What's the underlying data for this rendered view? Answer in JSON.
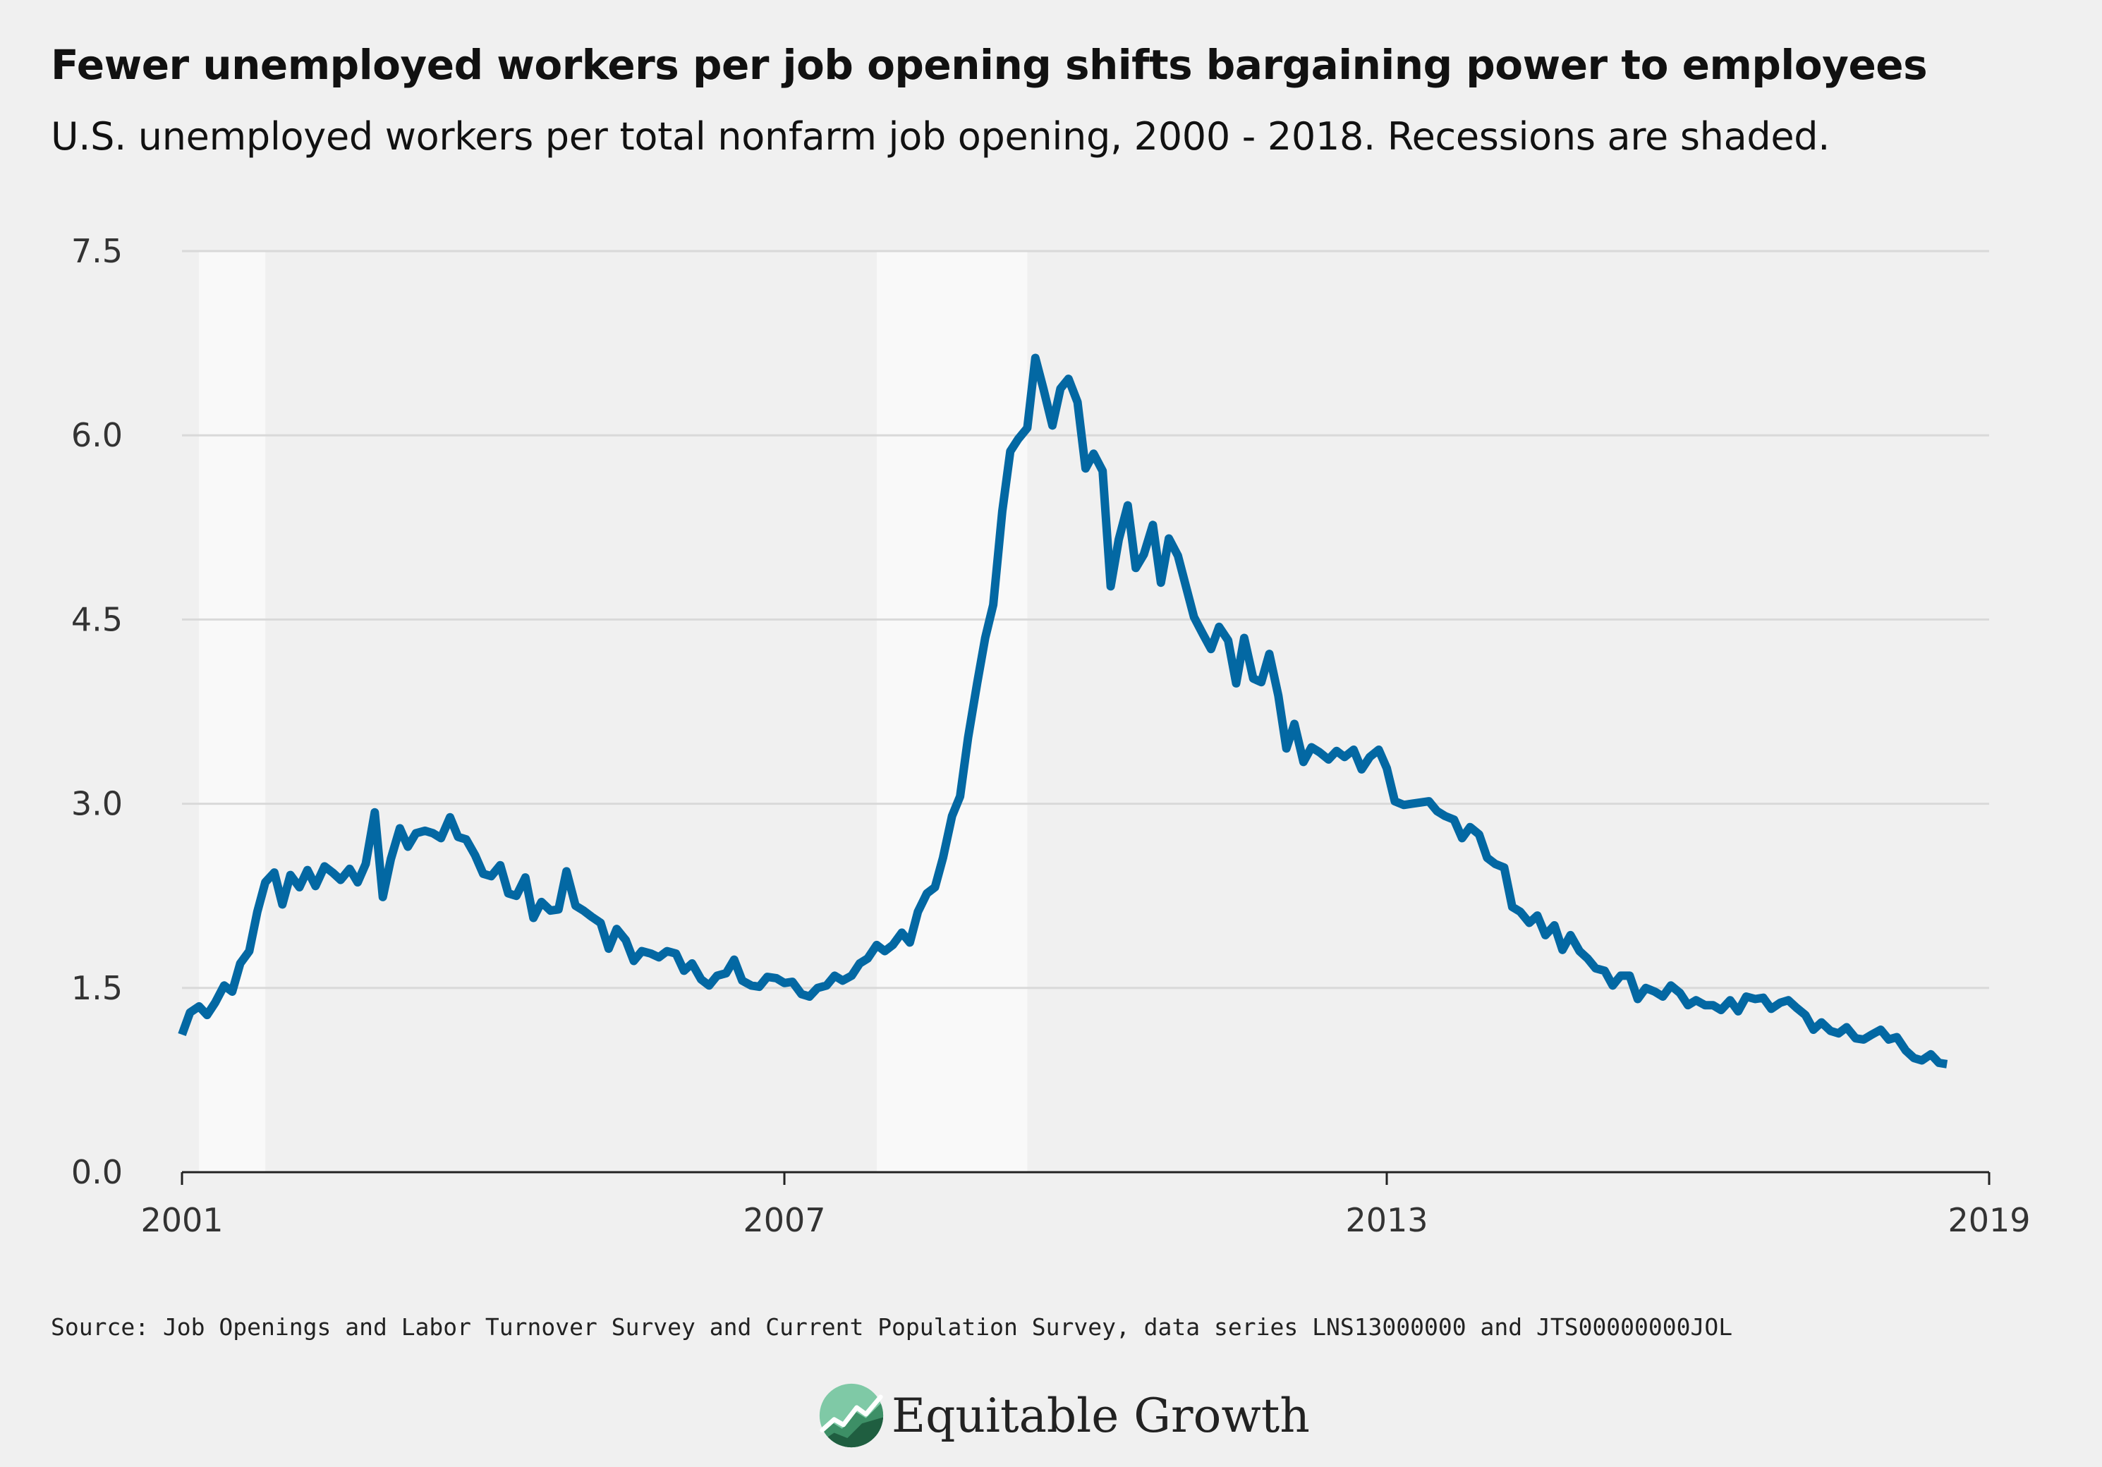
{
  "header": {
    "title": "Fewer unemployed workers per job opening shifts bargaining power to employees",
    "subtitle": "U.S. unemployed workers per total nonfarm job opening, 2000 - 2018. Recessions are shaded."
  },
  "footer": {
    "source": "Source: Job Openings and Labor Turnover Survey and Current Population Survey, data series LNS13000000 and JTS00000000JOL",
    "brand": "Equitable Growth",
    "brand_icon": "equitable-growth-logo-icon"
  },
  "colors": {
    "line": "#0368a3",
    "recession": "#f9f9f9",
    "background": "#f0f0f0",
    "grid": "#d9d9d9"
  },
  "chart_data": {
    "type": "line",
    "title": "Fewer unemployed workers per job opening shifts bargaining power to employees",
    "subtitle": "U.S. unemployed workers per total nonfarm job opening, 2000 - 2018. Recessions are shaded.",
    "xlabel": "",
    "ylabel": "",
    "xlim": [
      2001,
      2019
    ],
    "ylim": [
      0,
      7.5
    ],
    "x_ticks": [
      2001,
      2007,
      2013,
      2019
    ],
    "x_tick_labels": [
      "2001",
      "2007",
      "2013",
      "2019"
    ],
    "y_ticks": [
      0,
      1.5,
      3,
      4.5,
      6,
      7.5
    ],
    "y_tick_labels": [
      "0.0",
      "1.5",
      "3.0",
      "4.5",
      "6.0",
      "7.5"
    ],
    "grid": true,
    "legend": "none",
    "recessions": [
      {
        "start": 2001.17,
        "end": 2001.83
      },
      {
        "start": 2007.92,
        "end": 2009.42
      }
    ],
    "series": [
      {
        "points": [
          [
            2001.0,
            1.12
          ],
          [
            2001.08,
            1.3
          ],
          [
            2001.17,
            1.35
          ],
          [
            2001.25,
            1.28
          ],
          [
            2001.33,
            1.38
          ],
          [
            2001.42,
            1.52
          ],
          [
            2001.5,
            1.47
          ],
          [
            2001.58,
            1.7
          ],
          [
            2001.67,
            1.8
          ],
          [
            2001.75,
            2.12
          ],
          [
            2001.83,
            2.36
          ],
          [
            2001.92,
            2.44
          ],
          [
            2002.0,
            2.18
          ],
          [
            2002.08,
            2.42
          ],
          [
            2002.17,
            2.32
          ],
          [
            2002.25,
            2.46
          ],
          [
            2002.33,
            2.33
          ],
          [
            2002.42,
            2.49
          ],
          [
            2002.5,
            2.44
          ],
          [
            2002.58,
            2.38
          ],
          [
            2002.67,
            2.47
          ],
          [
            2002.75,
            2.36
          ],
          [
            2002.83,
            2.51
          ],
          [
            2002.92,
            2.93
          ],
          [
            2003.0,
            2.24
          ],
          [
            2003.08,
            2.55
          ],
          [
            2003.17,
            2.8
          ],
          [
            2003.25,
            2.65
          ],
          [
            2003.33,
            2.76
          ],
          [
            2003.42,
            2.78
          ],
          [
            2003.5,
            2.76
          ],
          [
            2003.58,
            2.72
          ],
          [
            2003.67,
            2.89
          ],
          [
            2003.75,
            2.73
          ],
          [
            2003.83,
            2.71
          ],
          [
            2003.92,
            2.58
          ],
          [
            2004.0,
            2.43
          ],
          [
            2004.08,
            2.41
          ],
          [
            2004.17,
            2.5
          ],
          [
            2004.25,
            2.27
          ],
          [
            2004.33,
            2.25
          ],
          [
            2004.42,
            2.4
          ],
          [
            2004.5,
            2.07
          ],
          [
            2004.58,
            2.2
          ],
          [
            2004.67,
            2.13
          ],
          [
            2004.75,
            2.14
          ],
          [
            2004.83,
            2.45
          ],
          [
            2004.92,
            2.17
          ],
          [
            2005.0,
            2.13
          ],
          [
            2005.08,
            2.08
          ],
          [
            2005.17,
            2.03
          ],
          [
            2005.25,
            1.82
          ],
          [
            2005.33,
            1.98
          ],
          [
            2005.42,
            1.89
          ],
          [
            2005.5,
            1.72
          ],
          [
            2005.58,
            1.8
          ],
          [
            2005.67,
            1.78
          ],
          [
            2005.75,
            1.75
          ],
          [
            2005.83,
            1.8
          ],
          [
            2005.92,
            1.78
          ],
          [
            2006.0,
            1.64
          ],
          [
            2006.08,
            1.7
          ],
          [
            2006.17,
            1.57
          ],
          [
            2006.25,
            1.52
          ],
          [
            2006.33,
            1.6
          ],
          [
            2006.42,
            1.62
          ],
          [
            2006.5,
            1.73
          ],
          [
            2006.58,
            1.56
          ],
          [
            2006.67,
            1.52
          ],
          [
            2006.75,
            1.51
          ],
          [
            2006.83,
            1.59
          ],
          [
            2006.92,
            1.58
          ],
          [
            2007.0,
            1.54
          ],
          [
            2007.08,
            1.55
          ],
          [
            2007.17,
            1.45
          ],
          [
            2007.25,
            1.43
          ],
          [
            2007.33,
            1.5
          ],
          [
            2007.42,
            1.52
          ],
          [
            2007.5,
            1.6
          ],
          [
            2007.58,
            1.56
          ],
          [
            2007.67,
            1.6
          ],
          [
            2007.75,
            1.7
          ],
          [
            2007.83,
            1.74
          ],
          [
            2007.92,
            1.85
          ],
          [
            2008.0,
            1.8
          ],
          [
            2008.08,
            1.85
          ],
          [
            2008.17,
            1.95
          ],
          [
            2008.25,
            1.87
          ],
          [
            2008.33,
            2.12
          ],
          [
            2008.42,
            2.27
          ],
          [
            2008.5,
            2.32
          ],
          [
            2008.58,
            2.56
          ],
          [
            2008.67,
            2.9
          ],
          [
            2008.75,
            3.06
          ],
          [
            2008.83,
            3.54
          ],
          [
            2008.92,
            3.98
          ],
          [
            2009.0,
            4.35
          ],
          [
            2009.08,
            4.62
          ],
          [
            2009.17,
            5.38
          ],
          [
            2009.25,
            5.87
          ],
          [
            2009.33,
            5.97
          ],
          [
            2009.42,
            6.06
          ],
          [
            2009.5,
            6.63
          ],
          [
            2009.58,
            6.38
          ],
          [
            2009.67,
            6.08
          ],
          [
            2009.75,
            6.38
          ],
          [
            2009.83,
            6.46
          ],
          [
            2009.92,
            6.27
          ],
          [
            2010.0,
            5.73
          ],
          [
            2010.08,
            5.85
          ],
          [
            2010.17,
            5.71
          ],
          [
            2010.25,
            4.77
          ],
          [
            2010.33,
            5.15
          ],
          [
            2010.42,
            5.43
          ],
          [
            2010.5,
            4.92
          ],
          [
            2010.58,
            5.03
          ],
          [
            2010.67,
            5.27
          ],
          [
            2010.75,
            4.8
          ],
          [
            2010.83,
            5.16
          ],
          [
            2010.92,
            5.02
          ],
          [
            2011.0,
            4.77
          ],
          [
            2011.08,
            4.52
          ],
          [
            2011.17,
            4.38
          ],
          [
            2011.25,
            4.26
          ],
          [
            2011.33,
            4.44
          ],
          [
            2011.42,
            4.33
          ],
          [
            2011.5,
            3.98
          ],
          [
            2011.58,
            4.35
          ],
          [
            2011.67,
            4.02
          ],
          [
            2011.75,
            3.99
          ],
          [
            2011.83,
            4.22
          ],
          [
            2011.92,
            3.88
          ],
          [
            2012.0,
            3.45
          ],
          [
            2012.08,
            3.65
          ],
          [
            2012.17,
            3.34
          ],
          [
            2012.25,
            3.46
          ],
          [
            2012.33,
            3.42
          ],
          [
            2012.42,
            3.36
          ],
          [
            2012.5,
            3.43
          ],
          [
            2012.58,
            3.38
          ],
          [
            2012.67,
            3.44
          ],
          [
            2012.75,
            3.28
          ],
          [
            2012.83,
            3.38
          ],
          [
            2012.92,
            3.44
          ],
          [
            2013.0,
            3.29
          ],
          [
            2013.08,
            3.02
          ],
          [
            2013.17,
            2.99
          ],
          [
            2013.25,
            3.0
          ],
          [
            2013.33,
            3.01
          ],
          [
            2013.42,
            3.02
          ],
          [
            2013.5,
            2.94
          ],
          [
            2013.58,
            2.9
          ],
          [
            2013.67,
            2.87
          ],
          [
            2013.75,
            2.72
          ],
          [
            2013.83,
            2.81
          ],
          [
            2013.92,
            2.75
          ],
          [
            2014.0,
            2.56
          ],
          [
            2014.08,
            2.51
          ],
          [
            2014.17,
            2.48
          ],
          [
            2014.25,
            2.16
          ],
          [
            2014.33,
            2.12
          ],
          [
            2014.42,
            2.03
          ],
          [
            2014.5,
            2.09
          ],
          [
            2014.58,
            1.93
          ],
          [
            2014.67,
            2.01
          ],
          [
            2014.75,
            1.81
          ],
          [
            2014.83,
            1.93
          ],
          [
            2014.92,
            1.8
          ],
          [
            2015.0,
            1.74
          ],
          [
            2015.08,
            1.66
          ],
          [
            2015.17,
            1.64
          ],
          [
            2015.25,
            1.52
          ],
          [
            2015.33,
            1.6
          ],
          [
            2015.42,
            1.6
          ],
          [
            2015.5,
            1.41
          ],
          [
            2015.58,
            1.5
          ],
          [
            2015.67,
            1.47
          ],
          [
            2015.75,
            1.43
          ],
          [
            2015.83,
            1.52
          ],
          [
            2015.92,
            1.46
          ],
          [
            2016.0,
            1.36
          ],
          [
            2016.08,
            1.4
          ],
          [
            2016.17,
            1.36
          ],
          [
            2016.25,
            1.36
          ],
          [
            2016.33,
            1.32
          ],
          [
            2016.42,
            1.4
          ],
          [
            2016.5,
            1.31
          ],
          [
            2016.58,
            1.43
          ],
          [
            2016.67,
            1.41
          ],
          [
            2016.75,
            1.42
          ],
          [
            2016.83,
            1.33
          ],
          [
            2016.92,
            1.38
          ],
          [
            2017.0,
            1.4
          ],
          [
            2017.08,
            1.34
          ],
          [
            2017.17,
            1.28
          ],
          [
            2017.25,
            1.16
          ],
          [
            2017.33,
            1.22
          ],
          [
            2017.42,
            1.15
          ],
          [
            2017.5,
            1.13
          ],
          [
            2017.58,
            1.18
          ],
          [
            2017.67,
            1.09
          ],
          [
            2017.75,
            1.08
          ],
          [
            2017.83,
            1.12
          ],
          [
            2017.92,
            1.16
          ],
          [
            2018.0,
            1.08
          ],
          [
            2018.08,
            1.1
          ],
          [
            2018.17,
            0.99
          ],
          [
            2018.25,
            0.93
          ],
          [
            2018.33,
            0.91
          ],
          [
            2018.42,
            0.96
          ],
          [
            2018.5,
            0.89
          ],
          [
            2018.58,
            0.88
          ]
        ]
      }
    ]
  }
}
